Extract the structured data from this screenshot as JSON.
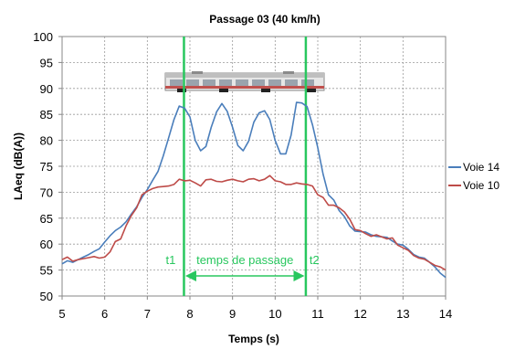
{
  "chart_data": {
    "type": "line",
    "title": "Passage 03 (40 km/h)",
    "xlabel": "Temps (s)",
    "ylabel": "LAeq (dB(A))",
    "xlim": [
      5,
      14
    ],
    "ylim": [
      50,
      100
    ],
    "x_ticks": [
      "5",
      "6",
      "7",
      "8",
      "9",
      "10",
      "11",
      "12",
      "13",
      "14"
    ],
    "y_ticks": [
      "50",
      "55",
      "60",
      "65",
      "70",
      "75",
      "80",
      "85",
      "90",
      "95",
      "100"
    ],
    "grid": true,
    "legend_position": "right",
    "series": [
      {
        "name": "Voie 14",
        "color": "#4a7ebb",
        "x": [
          5.0,
          5.125,
          5.25,
          5.375,
          5.5,
          5.625,
          5.75,
          5.875,
          6.0,
          6.125,
          6.25,
          6.375,
          6.5,
          6.625,
          6.75,
          6.875,
          7.0,
          7.125,
          7.25,
          7.375,
          7.5,
          7.625,
          7.75,
          7.875,
          8.0,
          8.125,
          8.25,
          8.375,
          8.5,
          8.625,
          8.75,
          8.875,
          9.0,
          9.125,
          9.25,
          9.375,
          9.5,
          9.625,
          9.75,
          9.875,
          10.0,
          10.125,
          10.25,
          10.375,
          10.5,
          10.625,
          10.75,
          10.875,
          11.0,
          11.125,
          11.25,
          11.375,
          11.5,
          11.625,
          11.75,
          11.875,
          12.0,
          12.125,
          12.25,
          12.375,
          12.5,
          12.625,
          12.75,
          12.875,
          13.0,
          13.125,
          13.25,
          13.375,
          13.5,
          13.625,
          13.75,
          13.875,
          14.0
        ],
        "values": [
          56.2,
          56.8,
          56.5,
          57.0,
          57.5,
          58.0,
          58.6,
          59.1,
          60.4,
          61.6,
          62.6,
          63.3,
          64.3,
          65.8,
          67.2,
          69.0,
          70.5,
          72.3,
          74.0,
          77.0,
          80.5,
          84.0,
          86.6,
          86.2,
          84.5,
          80.0,
          78.0,
          78.8,
          82.5,
          85.5,
          87.1,
          85.6,
          82.5,
          79.0,
          78.0,
          79.8,
          83.5,
          85.3,
          85.7,
          84.0,
          80.0,
          77.4,
          77.4,
          81.0,
          87.3,
          87.2,
          86.5,
          83.0,
          78.6,
          73.5,
          69.5,
          68.5,
          66.5,
          65.3,
          63.5,
          62.5,
          62.4,
          62.3,
          61.8,
          61.5,
          61.4,
          61.3,
          60.6,
          60.0,
          59.8,
          59.0,
          58.0,
          57.5,
          57.3,
          56.5,
          55.6,
          54.4,
          53.6
        ]
      },
      {
        "name": "Voie 10",
        "color": "#be4b48",
        "x": [
          5.0,
          5.125,
          5.25,
          5.375,
          5.5,
          5.625,
          5.75,
          5.875,
          6.0,
          6.125,
          6.25,
          6.375,
          6.5,
          6.625,
          6.75,
          6.875,
          7.0,
          7.125,
          7.25,
          7.375,
          7.5,
          7.625,
          7.75,
          7.875,
          8.0,
          8.125,
          8.25,
          8.375,
          8.5,
          8.625,
          8.75,
          8.875,
          9.0,
          9.125,
          9.25,
          9.375,
          9.5,
          9.625,
          9.75,
          9.875,
          10.0,
          10.125,
          10.25,
          10.375,
          10.5,
          10.625,
          10.75,
          10.875,
          11.0,
          11.125,
          11.25,
          11.375,
          11.5,
          11.625,
          11.75,
          11.875,
          12.0,
          12.125,
          12.25,
          12.375,
          12.5,
          12.625,
          12.75,
          12.875,
          13.0,
          13.125,
          13.25,
          13.375,
          13.5,
          13.625,
          13.75,
          13.875,
          14.0
        ],
        "values": [
          57.0,
          57.5,
          56.7,
          57.0,
          57.2,
          57.4,
          57.6,
          57.3,
          57.5,
          58.5,
          60.5,
          61.0,
          63.5,
          65.5,
          67.0,
          69.5,
          70.2,
          70.7,
          71.0,
          71.1,
          71.2,
          71.5,
          72.5,
          72.2,
          72.3,
          71.8,
          71.2,
          72.4,
          72.5,
          72.1,
          72.0,
          72.3,
          72.5,
          72.2,
          72.0,
          72.5,
          72.6,
          72.2,
          72.5,
          73.2,
          72.2,
          72.0,
          71.5,
          71.5,
          71.8,
          71.6,
          71.5,
          71.2,
          69.5,
          69.0,
          67.5,
          67.5,
          67.0,
          66.2,
          64.8,
          62.8,
          62.6,
          62.0,
          61.5,
          61.8,
          61.4,
          61.0,
          61.2,
          59.8,
          59.3,
          58.8,
          57.8,
          57.3,
          57.1,
          56.5,
          55.9,
          55.6,
          55.0
        ]
      }
    ],
    "annotations": {
      "t1_label": "t1",
      "t2_label": "t2",
      "passage_label": "temps de passage",
      "t1_x": 7.86,
      "t2_x": 10.72,
      "marker_color": "#28c75e"
    }
  },
  "image": {
    "train_icon": "tram-side-view-icon"
  }
}
